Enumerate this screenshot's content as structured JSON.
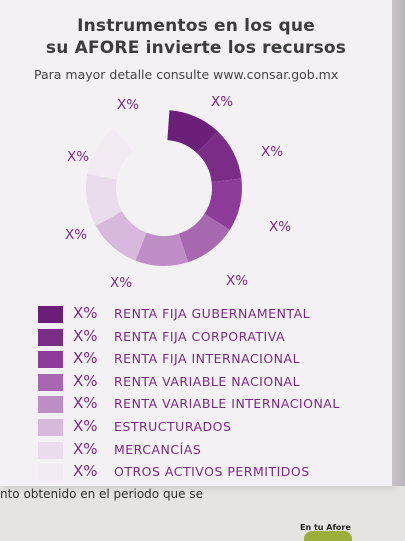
{
  "header": {
    "title_line1": "Instrumentos en los que",
    "title_line2": "su AFORE invierte los recursos",
    "subtitle": "Para mayor detalle consulte www.consar.gob.mx"
  },
  "chart_data": {
    "type": "pie",
    "categories": [
      "RENTA FIJA GUBERNAMENTAL",
      "RENTA FIJA CORPORATIVA",
      "RENTA FIJA INTERNACIONAL",
      "RENTA VARIABLE NACIONAL",
      "RENTA VARIABLE INTERNACIONAL",
      "ESTRUCTURADOS",
      "MERCANCÍAS",
      "OTROS ACTIVOS PERMITIDOS"
    ],
    "slice_labels": [
      "X%",
      "X%",
      "X%",
      "X%",
      "X%",
      "X%",
      "X%",
      "X%"
    ],
    "colors": [
      "#6b1f79",
      "#7a2c87",
      "#8e3c99",
      "#a767b1",
      "#bf8ec6",
      "#d8b8dc",
      "#eadcec",
      "#f2ebf3"
    ],
    "note": "Donut chart with placeholder percentages; slices visually equal"
  },
  "legend": [
    {
      "pct": "X%",
      "label": "RENTA FIJA GUBERNAMENTAL",
      "color": "#6b1f79"
    },
    {
      "pct": "X%",
      "label": "RENTA FIJA CORPORATIVA",
      "color": "#7a2c87"
    },
    {
      "pct": "X%",
      "label": "RENTA FIJA INTERNACIONAL",
      "color": "#8e3c99"
    },
    {
      "pct": "X%",
      "label": "RENTA VARIABLE NACIONAL",
      "color": "#a767b1"
    },
    {
      "pct": "X%",
      "label": "RENTA VARIABLE INTERNACIONAL",
      "color": "#bf8ec6"
    },
    {
      "pct": "X%",
      "label": "ESTRUCTURADOS",
      "color": "#d8b8dc"
    },
    {
      "pct": "X%",
      "label": "MERCANCÍAS",
      "color": "#eadcec"
    },
    {
      "pct": "X%",
      "label": "OTROS ACTIVOS PERMITIDOS",
      "color": "#f2ebf3"
    }
  ],
  "footer": {
    "text": "nto obtenido en el periodo que se",
    "logo_text": "En tu Afore"
  }
}
